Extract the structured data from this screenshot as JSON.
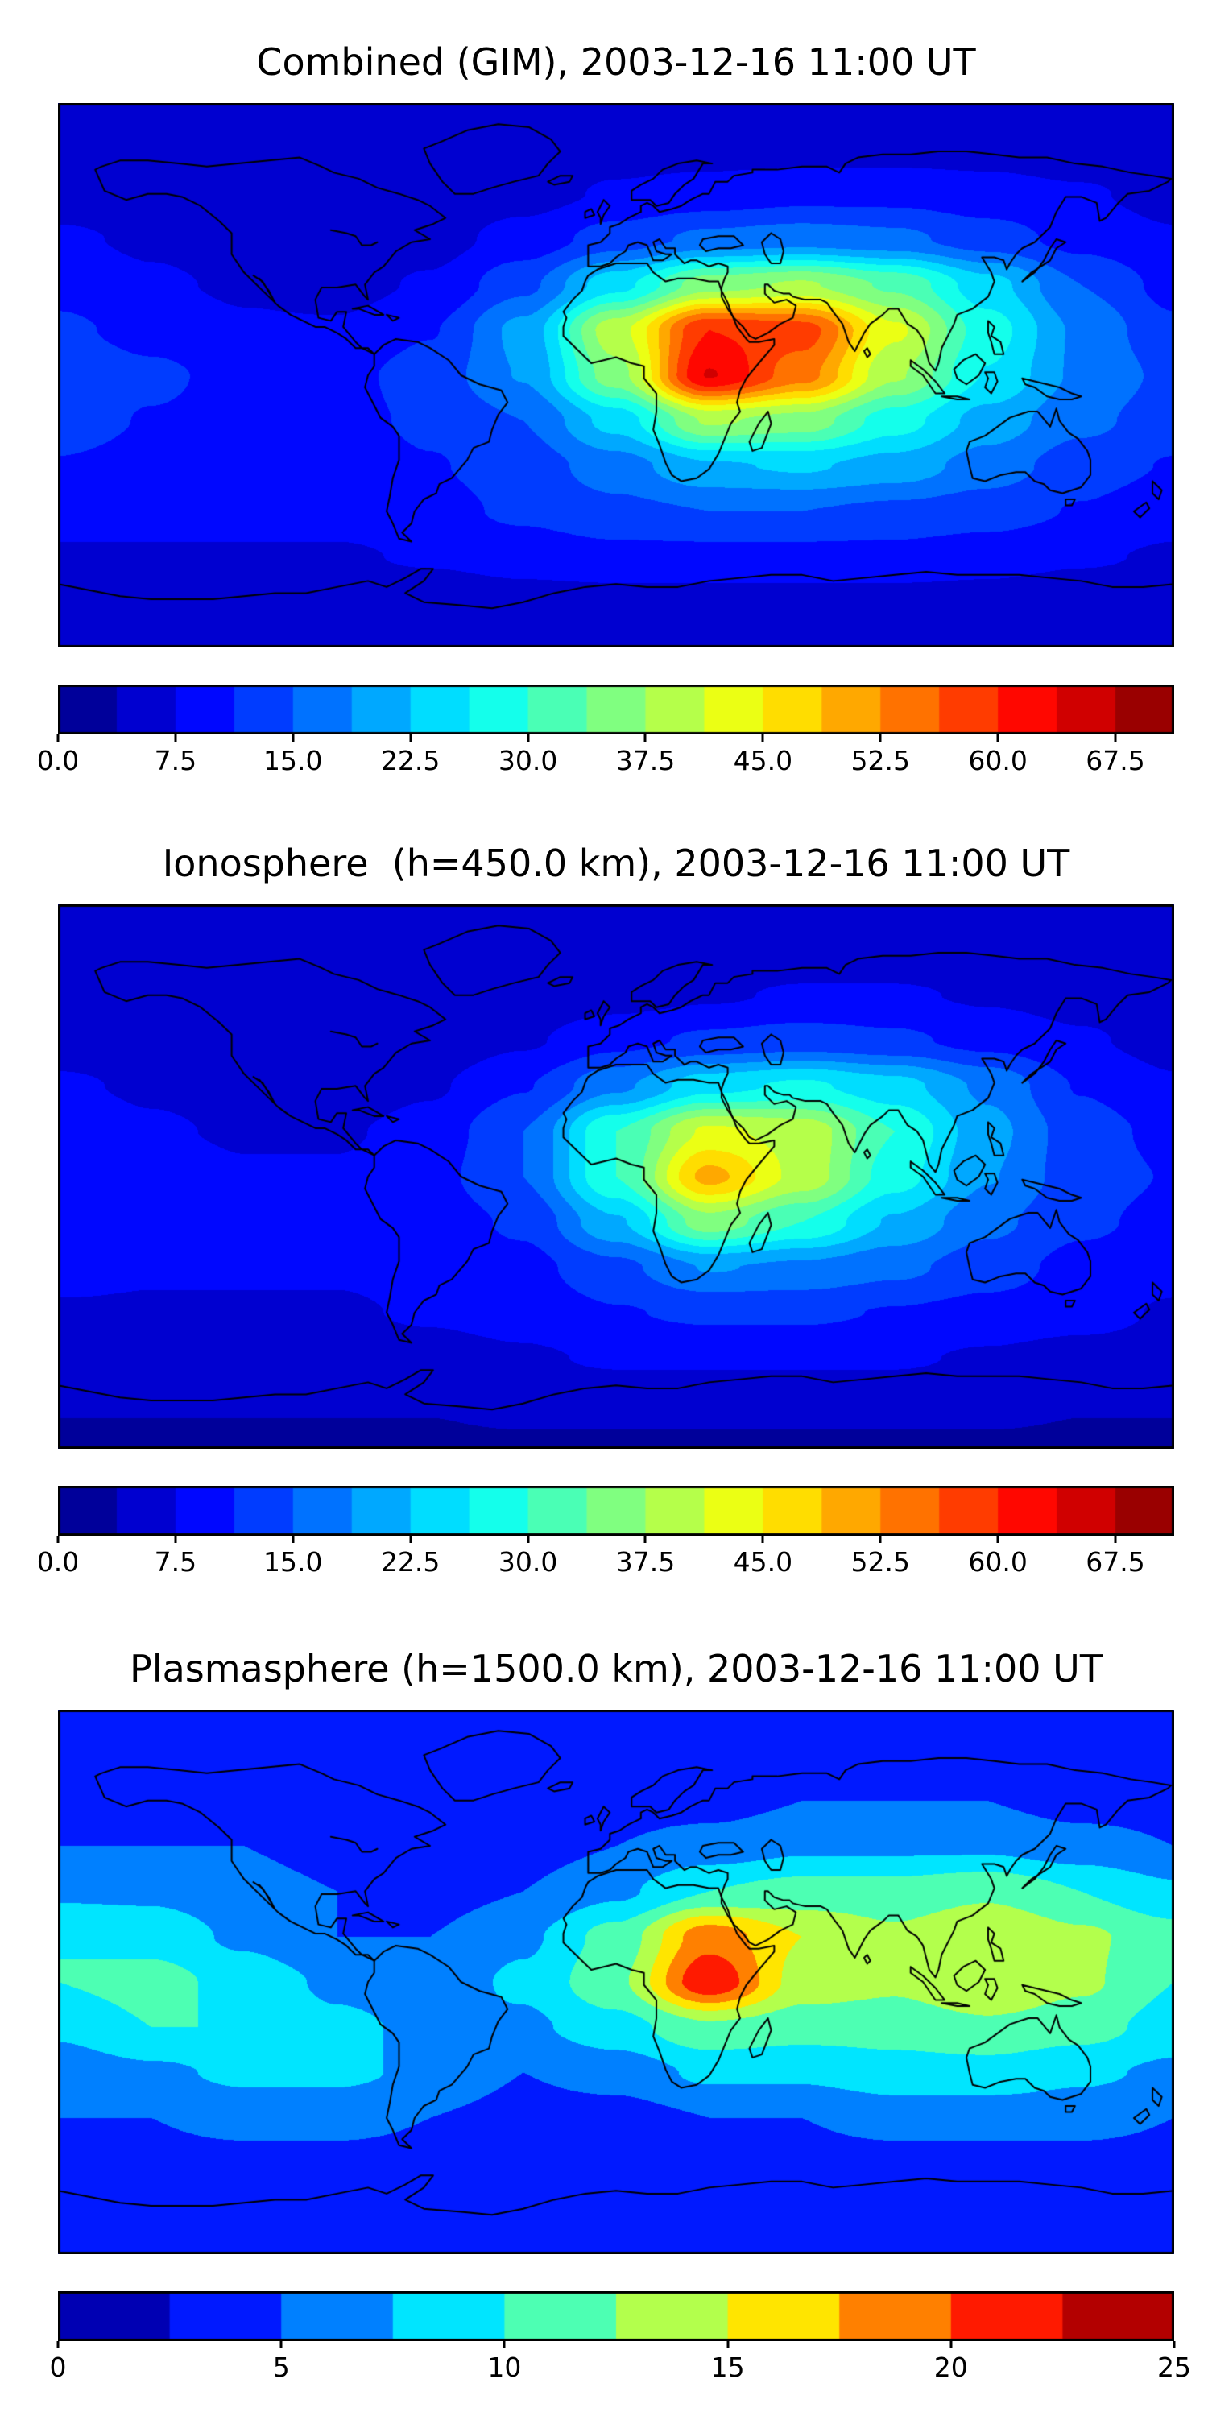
{
  "figure": {
    "background": "#ffffff",
    "colormap": "jet",
    "n_panels": 3
  },
  "chart_data": [
    {
      "type": "heatmap",
      "title": "Combined (GIM), 2003-12-16 11:00 UT",
      "projection": "equirectangular",
      "grid": "off",
      "legend": "colorbar-bottom",
      "colormap": "jet",
      "vmin": 0,
      "vmax": 71.25,
      "contour_step": 3.75,
      "n_segments": 19,
      "colorbar_tick_labels": [
        "0.0",
        "7.5",
        "15.0",
        "22.5",
        "30.0",
        "37.5",
        "45.0",
        "52.5",
        "60.0",
        "67.5"
      ],
      "colorbar_tick_values": [
        0,
        7.5,
        15,
        22.5,
        30,
        37.5,
        45,
        52.5,
        60,
        67.5
      ],
      "lon": [
        -180,
        -150,
        -120,
        -90,
        -60,
        -30,
        0,
        30,
        60,
        90,
        120,
        150,
        180
      ],
      "lat": [
        90,
        75,
        60,
        45,
        30,
        15,
        0,
        -15,
        -30,
        -45,
        -60,
        -75,
        -90
      ],
      "values": [
        [
          5,
          5,
          5,
          5,
          5,
          5,
          5,
          5,
          5,
          5,
          5,
          5,
          5
        ],
        [
          5,
          5,
          4,
          4,
          4,
          5,
          6,
          6,
          6,
          6,
          6,
          5,
          5
        ],
        [
          6,
          6,
          5,
          4,
          5,
          6,
          8,
          9,
          10,
          10,
          9,
          8,
          6
        ],
        [
          8,
          7,
          6,
          5,
          6,
          9,
          13,
          16,
          17,
          16,
          13,
          10,
          8
        ],
        [
          10,
          8,
          7,
          6,
          8,
          14,
          25,
          36,
          38,
          33,
          24,
          15,
          10
        ],
        [
          12,
          10,
          8,
          8,
          11,
          20,
          40,
          60,
          58,
          42,
          28,
          18,
          12
        ],
        [
          14,
          12,
          10,
          10,
          13,
          19,
          36,
          64,
          54,
          38,
          26,
          18,
          14
        ],
        [
          13,
          11,
          10,
          10,
          12,
          15,
          24,
          38,
          36,
          28,
          21,
          16,
          13
        ],
        [
          11,
          10,
          9,
          9,
          11,
          13,
          17,
          22,
          23,
          21,
          17,
          13,
          11
        ],
        [
          9,
          9,
          9,
          9,
          10,
          12,
          14,
          15,
          15,
          14,
          13,
          11,
          9
        ],
        [
          7,
          7,
          7,
          7,
          8,
          9,
          10,
          10,
          10,
          10,
          9,
          8,
          7
        ],
        [
          5,
          5,
          5,
          5,
          5,
          6,
          6,
          6,
          6,
          6,
          6,
          5,
          5
        ],
        [
          4,
          4,
          4,
          4,
          4,
          4,
          4,
          4,
          4,
          4,
          4,
          4,
          4
        ]
      ]
    },
    {
      "type": "heatmap",
      "title": "Ionosphere  (h=450.0 km), 2003-12-16 11:00 UT",
      "projection": "equirectangular",
      "grid": "off",
      "legend": "colorbar-bottom",
      "colormap": "jet",
      "vmin": 0,
      "vmax": 71.25,
      "contour_step": 3.75,
      "n_segments": 19,
      "colorbar_tick_labels": [
        "0.0",
        "7.5",
        "15.0",
        "22.5",
        "30.0",
        "37.5",
        "45.0",
        "52.5",
        "60.0",
        "67.5"
      ],
      "colorbar_tick_values": [
        0,
        7.5,
        15,
        22.5,
        30,
        37.5,
        45,
        52.5,
        60,
        67.5
      ],
      "lon": [
        -180,
        -150,
        -120,
        -90,
        -60,
        -30,
        0,
        30,
        60,
        90,
        120,
        150,
        180
      ],
      "lat": [
        90,
        75,
        60,
        45,
        30,
        15,
        0,
        -15,
        -30,
        -45,
        -60,
        -75,
        -90
      ],
      "values": [
        [
          4,
          4,
          4,
          4,
          4,
          4,
          4,
          4,
          4,
          4,
          4,
          4,
          4
        ],
        [
          4,
          4,
          4,
          4,
          4,
          4,
          5,
          5,
          5,
          5,
          5,
          4,
          4
        ],
        [
          5,
          5,
          4,
          4,
          4,
          5,
          6,
          7,
          8,
          8,
          7,
          6,
          5
        ],
        [
          6,
          6,
          5,
          4,
          5,
          7,
          10,
          12,
          13,
          12,
          10,
          8,
          6
        ],
        [
          8,
          7,
          6,
          5,
          7,
          11,
          18,
          25,
          27,
          24,
          18,
          11,
          8
        ],
        [
          10,
          8,
          7,
          7,
          9,
          15,
          30,
          42,
          40,
          30,
          20,
          13,
          10
        ],
        [
          11,
          10,
          8,
          8,
          10,
          15,
          30,
          50,
          40,
          28,
          19,
          13,
          11
        ],
        [
          10,
          9,
          8,
          8,
          9,
          12,
          22,
          36,
          30,
          22,
          16,
          12,
          10
        ],
        [
          9,
          8,
          8,
          8,
          9,
          10,
          14,
          19,
          18,
          16,
          13,
          10,
          9
        ],
        [
          7,
          7,
          7,
          7,
          8,
          9,
          11,
          12,
          12,
          11,
          10,
          9,
          7
        ],
        [
          6,
          6,
          6,
          6,
          6,
          7,
          8,
          8,
          8,
          8,
          7,
          6,
          6
        ],
        [
          4,
          4,
          4,
          4,
          4,
          5,
          5,
          5,
          5,
          5,
          5,
          4,
          4
        ],
        [
          3,
          3,
          3,
          3,
          3,
          3,
          3,
          3,
          3,
          3,
          3,
          3,
          3
        ]
      ]
    },
    {
      "type": "heatmap",
      "title": "Plasmasphere (h=1500.0 km), 2003-12-16 11:00 UT",
      "projection": "equirectangular",
      "grid": "off",
      "legend": "colorbar-bottom",
      "colormap": "jet",
      "vmin": 0,
      "vmax": 25,
      "contour_step": 2.5,
      "n_segments": 10,
      "colorbar_tick_labels": [
        "0",
        "5",
        "10",
        "15",
        "20",
        "25"
      ],
      "colorbar_tick_values": [
        0,
        5,
        10,
        15,
        20,
        25
      ],
      "lon": [
        -180,
        -150,
        -120,
        -90,
        -60,
        -30,
        0,
        30,
        60,
        90,
        120,
        150,
        180
      ],
      "lat": [
        90,
        75,
        60,
        45,
        30,
        15,
        0,
        -15,
        -30,
        -45,
        -60,
        -75,
        -90
      ],
      "values": [
        [
          3,
          3,
          3,
          3,
          3,
          3,
          3,
          3,
          3,
          3,
          3,
          3,
          3
        ],
        [
          3,
          3,
          3,
          3,
          3,
          3,
          3,
          3,
          3,
          3,
          3,
          3,
          3
        ],
        [
          4,
          4,
          4,
          4,
          4,
          4,
          4,
          4,
          5,
          5,
          5,
          4,
          4
        ],
        [
          5,
          5,
          5,
          4,
          4,
          4,
          5,
          6,
          7,
          7,
          7,
          6,
          5
        ],
        [
          7,
          7,
          6,
          5,
          4,
          5,
          7,
          10,
          11,
          11,
          12,
          10,
          8
        ],
        [
          10,
          9,
          7,
          5,
          5,
          7,
          11,
          19,
          15,
          13,
          15,
          13,
          11
        ],
        [
          10,
          11,
          9,
          7,
          6,
          8,
          12,
          22,
          14,
          13,
          15,
          13,
          10
        ],
        [
          8,
          10,
          10,
          8,
          7,
          7,
          9,
          12,
          11,
          11,
          12,
          11,
          9
        ],
        [
          6,
          7,
          8,
          8,
          7,
          5,
          6,
          8,
          8,
          9,
          9,
          8,
          7
        ],
        [
          5,
          5,
          6,
          6,
          5,
          4,
          4,
          5,
          5,
          6,
          6,
          6,
          5
        ],
        [
          4,
          4,
          4,
          4,
          4,
          4,
          4,
          4,
          4,
          4,
          4,
          4,
          4
        ],
        [
          3,
          3,
          3,
          3,
          3,
          3,
          3,
          3,
          3,
          3,
          3,
          3,
          3
        ],
        [
          3,
          3,
          3,
          3,
          3,
          3,
          3,
          3,
          3,
          3,
          3,
          3,
          3
        ]
      ]
    }
  ]
}
